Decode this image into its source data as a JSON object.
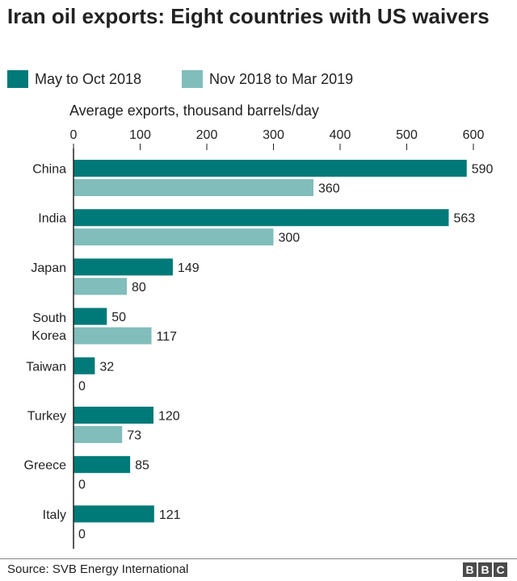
{
  "chart_data": {
    "type": "bar",
    "orientation": "horizontal",
    "title": "Iran oil exports: Eight countries with US waivers",
    "xlabel": "Average exports, thousand barrels/day",
    "ylabel": "",
    "xlim": [
      0,
      600
    ],
    "ticks": [
      "0",
      "100",
      "200",
      "300",
      "400",
      "500",
      "600"
    ],
    "tick_values": [
      0,
      100,
      200,
      300,
      400,
      500,
      600
    ],
    "grid": false,
    "legend_position": "top-left",
    "categories": [
      [
        "China"
      ],
      [
        "India"
      ],
      [
        "Japan"
      ],
      [
        "South",
        "Korea"
      ],
      [
        "Taiwan"
      ],
      [
        "Turkey"
      ],
      [
        "Greece"
      ],
      [
        "Italy"
      ]
    ],
    "series": [
      {
        "name": "May to Oct 2018",
        "color": "#007a78",
        "values": [
          590,
          563,
          149,
          50,
          32,
          120,
          85,
          121
        ]
      },
      {
        "name": "Nov 2018 to Mar 2019",
        "color": "#80bdbb",
        "values": [
          360,
          300,
          80,
          117,
          0,
          73,
          0,
          0
        ]
      }
    ]
  },
  "footer": {
    "source": "Source: SVB Energy International",
    "logo_letters": [
      "B",
      "B",
      "C"
    ]
  }
}
